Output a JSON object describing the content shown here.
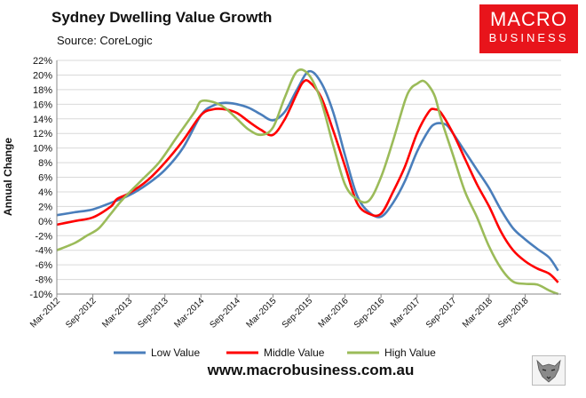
{
  "header": {
    "title": "Sydney Dwelling Value Growth",
    "source": "Source: CoreLogic"
  },
  "logo": {
    "line1": "MACRO",
    "line2": "BUSINESS"
  },
  "footer": {
    "url": "www.macrobusiness.com.au"
  },
  "icons": {
    "watermark": "wolf-head-icon"
  },
  "colors": {
    "low": "#4a7ebb",
    "middle": "#ff0000",
    "high": "#9bbb59",
    "brand": "#e8141b"
  },
  "chart_data": {
    "type": "line",
    "title": "Sydney Dwelling Value Growth",
    "xlabel": "",
    "ylabel": "Annual Change",
    "ylim": [
      -10,
      22
    ],
    "yticks": [
      "22%",
      "20%",
      "18%",
      "16%",
      "14%",
      "12%",
      "10%",
      "8%",
      "6%",
      "4%",
      "2%",
      "0%",
      "-2%",
      "-4%",
      "-6%",
      "-8%",
      "-10%"
    ],
    "x_tick_labels": [
      "Mar-2012",
      "Sep-2012",
      "Mar-2013",
      "Sep-2013",
      "Mar-2014",
      "Sep-2014",
      "Mar-2015",
      "Sep-2015",
      "Mar-2016",
      "Sep-2016",
      "Mar-2017",
      "Sep-2017",
      "Mar-2018",
      "Sep-2018"
    ],
    "x_tick_months": [
      0,
      6,
      12,
      18,
      24,
      30,
      36,
      42,
      48,
      54,
      60,
      66,
      72,
      78
    ],
    "x_range_months": [
      0,
      84
    ],
    "grid": true,
    "legend": "bottom",
    "series": [
      {
        "name": "Low Value",
        "color": "#4a7ebb",
        "points": [
          [
            0,
            0.8
          ],
          [
            3,
            1.2
          ],
          [
            6,
            1.6
          ],
          [
            9,
            2.5
          ],
          [
            12,
            3.5
          ],
          [
            15,
            5
          ],
          [
            18,
            7
          ],
          [
            21,
            10
          ],
          [
            24,
            14.5
          ],
          [
            26,
            15.8
          ],
          [
            28,
            16.2
          ],
          [
            30,
            16
          ],
          [
            32,
            15.5
          ],
          [
            34,
            14.6
          ],
          [
            36,
            13.8
          ],
          [
            38,
            15
          ],
          [
            40,
            18
          ],
          [
            42,
            20.5
          ],
          [
            44,
            19
          ],
          [
            46,
            15
          ],
          [
            48,
            9
          ],
          [
            50,
            3.5
          ],
          [
            52,
            1.2
          ],
          [
            54,
            0.6
          ],
          [
            56,
            2.5
          ],
          [
            58,
            5.5
          ],
          [
            60,
            9.5
          ],
          [
            62,
            12.5
          ],
          [
            63,
            13.3
          ],
          [
            64,
            13.4
          ],
          [
            65,
            13.1
          ],
          [
            66,
            12
          ],
          [
            68,
            9.5
          ],
          [
            70,
            7
          ],
          [
            72,
            4.5
          ],
          [
            74,
            1.5
          ],
          [
            76,
            -1
          ],
          [
            78,
            -2.5
          ],
          [
            80,
            -3.8
          ],
          [
            82,
            -5
          ],
          [
            83.5,
            -6.8
          ]
        ]
      },
      {
        "name": "Middle Value",
        "color": "#ff0000",
        "points": [
          [
            0,
            -0.5
          ],
          [
            3,
            0
          ],
          [
            6,
            0.5
          ],
          [
            9,
            2
          ],
          [
            10,
            3
          ],
          [
            12,
            3.8
          ],
          [
            15,
            5.5
          ],
          [
            18,
            8
          ],
          [
            21,
            11
          ],
          [
            24,
            14.5
          ],
          [
            26,
            15.3
          ],
          [
            28,
            15.3
          ],
          [
            30,
            14.8
          ],
          [
            32,
            13.6
          ],
          [
            34,
            12.5
          ],
          [
            36,
            11.8
          ],
          [
            38,
            14
          ],
          [
            40,
            17.5
          ],
          [
            41,
            19
          ],
          [
            42,
            19.1
          ],
          [
            44,
            17
          ],
          [
            46,
            12.5
          ],
          [
            48,
            7.5
          ],
          [
            50,
            2.5
          ],
          [
            52,
            1
          ],
          [
            54,
            1
          ],
          [
            56,
            4
          ],
          [
            58,
            7.5
          ],
          [
            60,
            12
          ],
          [
            62,
            15
          ],
          [
            63,
            15.3
          ],
          [
            64,
            14.8
          ],
          [
            66,
            12
          ],
          [
            68,
            8.5
          ],
          [
            70,
            5
          ],
          [
            72,
            2
          ],
          [
            74,
            -1.5
          ],
          [
            76,
            -4
          ],
          [
            78,
            -5.5
          ],
          [
            80,
            -6.5
          ],
          [
            82,
            -7.2
          ],
          [
            83.5,
            -8.4
          ]
        ]
      },
      {
        "name": "High Value",
        "color": "#9bbb59",
        "points": [
          [
            0,
            -4
          ],
          [
            3,
            -3
          ],
          [
            5,
            -2
          ],
          [
            7,
            -1
          ],
          [
            9,
            1
          ],
          [
            11,
            3
          ],
          [
            14,
            5.5
          ],
          [
            17,
            8
          ],
          [
            20,
            11.5
          ],
          [
            23,
            15
          ],
          [
            24,
            16.4
          ],
          [
            26,
            16.3
          ],
          [
            28,
            15.5
          ],
          [
            30,
            14
          ],
          [
            32,
            12.5
          ],
          [
            34,
            11.8
          ],
          [
            36,
            12.8
          ],
          [
            38,
            17
          ],
          [
            40,
            20.5
          ],
          [
            42,
            20
          ],
          [
            44,
            16.5
          ],
          [
            46,
            10.5
          ],
          [
            48,
            5
          ],
          [
            50,
            3
          ],
          [
            52,
            2.8
          ],
          [
            54,
            6
          ],
          [
            56,
            11
          ],
          [
            58,
            16.5
          ],
          [
            59,
            18.2
          ],
          [
            60,
            18.8
          ],
          [
            61,
            19.2
          ],
          [
            62,
            18.5
          ],
          [
            63,
            17
          ],
          [
            64,
            14
          ],
          [
            66,
            9
          ],
          [
            68,
            4
          ],
          [
            70,
            0.5
          ],
          [
            72,
            -3.5
          ],
          [
            74,
            -6.5
          ],
          [
            76,
            -8.3
          ],
          [
            78,
            -8.6
          ],
          [
            80,
            -8.7
          ],
          [
            82,
            -9.5
          ],
          [
            83.5,
            -10
          ]
        ]
      }
    ]
  }
}
